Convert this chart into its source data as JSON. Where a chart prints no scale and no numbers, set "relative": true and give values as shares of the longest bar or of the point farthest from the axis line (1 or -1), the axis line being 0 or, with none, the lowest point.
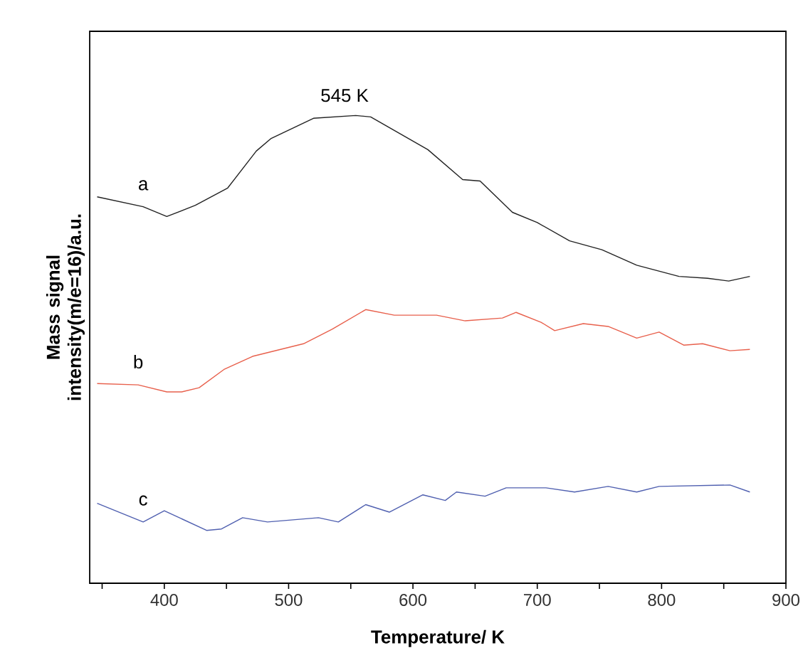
{
  "chart_data": {
    "type": "line",
    "relative": true,
    "xlabel": "Temperature/ K",
    "ylabel": "Mass signal intensity(m/e=16)/a.u.",
    "xlim": [
      340,
      900
    ],
    "xticks": [
      {
        "value": 350,
        "label": null
      },
      400,
      {
        "value": 450,
        "label": null
      },
      500,
      {
        "value": 550,
        "label": null
      },
      600,
      {
        "value": 650,
        "label": null
      },
      700,
      {
        "value": 750,
        "label": null
      },
      800,
      {
        "value": 850,
        "label": null
      },
      900
    ],
    "tick_labels": "x",
    "marker": "none",
    "line_style": "solid",
    "annotations": [
      {
        "text": "545 K",
        "x": 545,
        "y": 1.0
      }
    ],
    "series": [
      {
        "name": "a",
        "color": "#222222",
        "x": [
          346,
          383,
          402,
          425,
          451,
          474,
          486,
          520,
          554,
          566,
          612,
          640,
          654,
          680,
          700,
          726,
          752,
          780,
          814,
          837,
          854,
          871
        ],
        "values": [
          0.826,
          0.805,
          0.784,
          0.808,
          0.845,
          0.924,
          0.951,
          0.994,
          1.0,
          0.997,
          0.927,
          0.863,
          0.86,
          0.793,
          0.771,
          0.732,
          0.713,
          0.68,
          0.656,
          0.652,
          0.646,
          0.656
        ]
      },
      {
        "name": "b",
        "color": "#e8604c",
        "x": [
          346,
          379,
          402,
          414,
          428,
          448,
          471,
          512,
          535,
          562,
          585,
          619,
          642,
          672,
          683,
          703,
          714,
          737,
          757,
          780,
          798,
          818,
          833,
          855,
          871
        ],
        "values": [
          0.427,
          0.424,
          0.409,
          0.409,
          0.418,
          0.457,
          0.485,
          0.512,
          0.543,
          0.585,
          0.573,
          0.573,
          0.561,
          0.567,
          0.579,
          0.558,
          0.54,
          0.555,
          0.549,
          0.524,
          0.537,
          0.509,
          0.512,
          0.497,
          0.5
        ]
      },
      {
        "name": "c",
        "color": "#5060b0",
        "x": [
          346,
          383,
          400,
          434,
          446,
          463,
          483,
          524,
          540,
          562,
          581,
          608,
          626,
          635,
          658,
          675,
          707,
          730,
          757,
          780,
          798,
          855,
          871
        ],
        "values": [
          0.171,
          0.131,
          0.155,
          0.113,
          0.116,
          0.14,
          0.131,
          0.14,
          0.131,
          0.168,
          0.152,
          0.189,
          0.177,
          0.195,
          0.186,
          0.204,
          0.204,
          0.195,
          0.207,
          0.195,
          0.207,
          0.21,
          0.195
        ]
      }
    ]
  }
}
